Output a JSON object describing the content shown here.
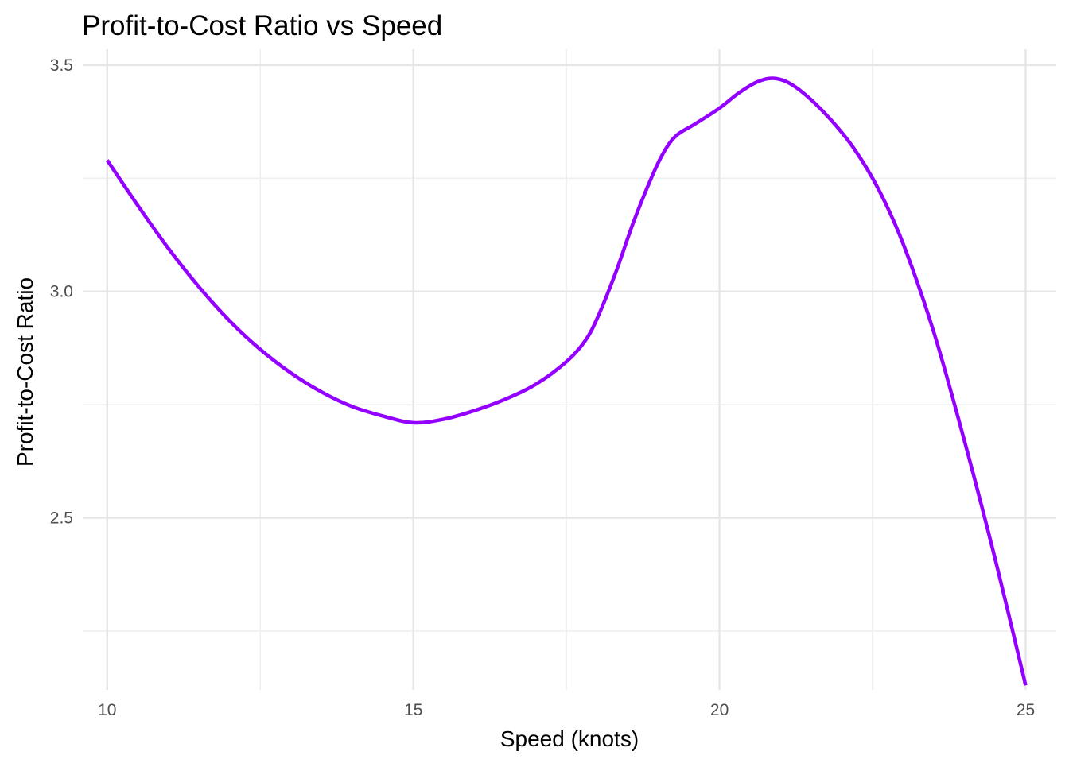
{
  "chart_data": {
    "type": "line",
    "title": "Profit-to-Cost Ratio vs Speed",
    "xlabel": "Speed (knots)",
    "ylabel": "Profit-to-Cost Ratio",
    "xlim": [
      9.6,
      25.5
    ],
    "ylim": [
      2.12,
      3.535
    ],
    "x_ticks": [
      10,
      15,
      20,
      25
    ],
    "x_tick_labels": [
      "10",
      "15",
      "20",
      "25"
    ],
    "y_ticks": [
      2.5,
      3.0,
      3.5
    ],
    "y_tick_labels": [
      "2.5",
      "3.0",
      "3.5"
    ],
    "grid": true,
    "legend": "none",
    "line_color": "#9400ff",
    "series": [
      {
        "x": [
          10,
          10.5,
          11,
          11.5,
          12,
          12.5,
          13,
          13.5,
          14,
          14.5,
          15,
          15.5,
          16,
          16.5,
          17,
          17.5,
          17.8,
          18,
          18.3,
          18.6,
          18.9,
          19.1,
          19.3,
          19.6,
          20,
          20.3,
          20.6,
          20.85,
          21.1,
          21.4,
          21.8,
          22.2,
          22.6,
          23,
          23.5,
          24,
          24.5,
          25
        ],
        "y": [
          3.29,
          3.19,
          3.095,
          3.01,
          2.935,
          2.872,
          2.82,
          2.778,
          2.746,
          2.725,
          2.71,
          2.718,
          2.737,
          2.762,
          2.795,
          2.845,
          2.89,
          2.94,
          3.04,
          3.155,
          3.255,
          3.31,
          3.345,
          3.37,
          3.405,
          3.437,
          3.462,
          3.471,
          3.463,
          3.435,
          3.382,
          3.315,
          3.225,
          3.105,
          2.91,
          2.67,
          2.41,
          2.13
        ]
      }
    ]
  }
}
